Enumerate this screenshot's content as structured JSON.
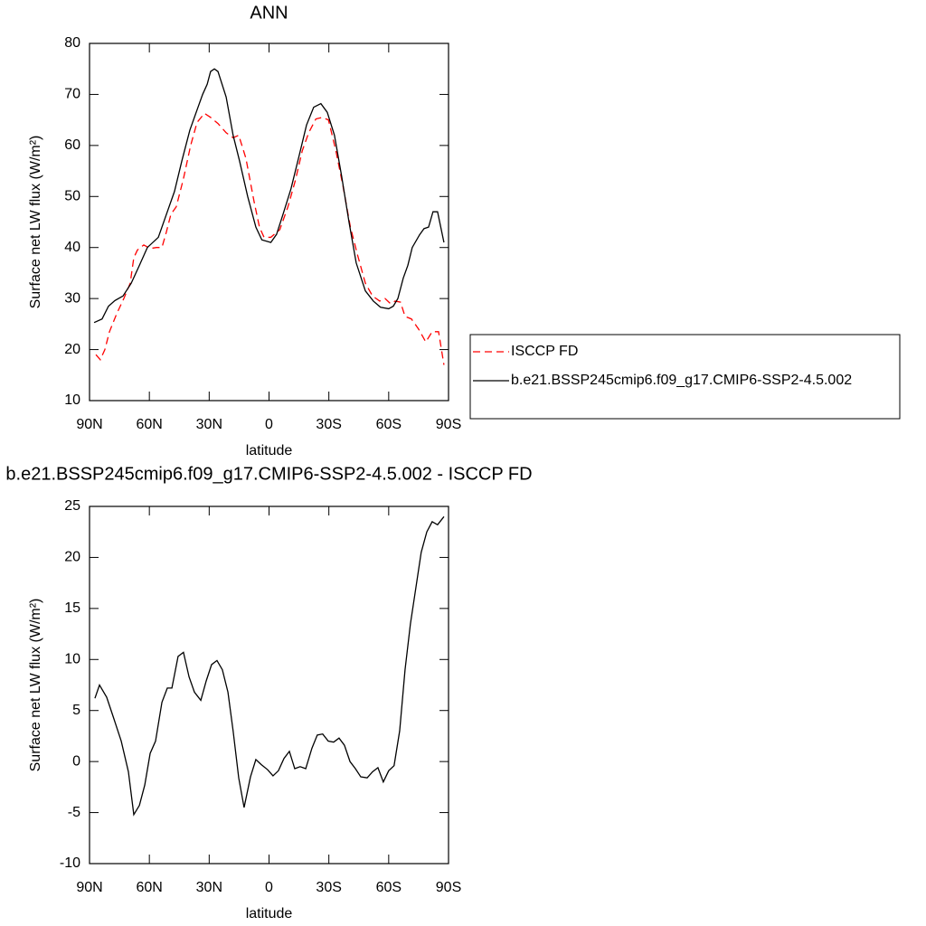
{
  "chart_data": [
    {
      "type": "line",
      "title": "ANN",
      "xlabel": "latitude",
      "ylabel": "Surface net LW flux (W/m²)",
      "xlim": [
        90,
        -90
      ],
      "xticks": [
        {
          "value": 90,
          "label": "90N"
        },
        {
          "value": 60,
          "label": "60N"
        },
        {
          "value": 30,
          "label": "30N"
        },
        0,
        {
          "value": -30,
          "label": "30S"
        },
        {
          "value": -60,
          "label": "60S"
        },
        {
          "value": -90,
          "label": "90S"
        }
      ],
      "ylim": [
        10,
        80
      ],
      "yticks": [
        10,
        20,
        30,
        40,
        50,
        60,
        70,
        80
      ],
      "legend": "right",
      "series": [
        {
          "name": "ISCCP FD",
          "color": "#ff0000",
          "dash": true,
          "x": [
            86.8,
            84.6,
            82.3,
            80,
            76.4,
            72.8,
            69.6,
            67.8,
            66,
            62.8,
            59.6,
            56.5,
            53.7,
            51.5,
            49.2,
            46.5,
            42.9,
            39.3,
            36.1,
            32.4,
            29.3,
            25.6,
            21.5,
            18,
            15.2,
            11.6,
            7.5,
            4.8,
            2.5,
            -0.9,
            -5.4,
            -9.5,
            -13.1,
            -16.7,
            -19.9,
            -23.5,
            -26.7,
            -29.8,
            -33.5,
            -37.1,
            -40.8,
            -44.4,
            -48.3,
            -51.9,
            -55.5,
            -58.2,
            -60.9,
            -63.2,
            -65.9,
            -68.2,
            -71.4,
            -75,
            -78.6,
            -81.8,
            -85,
            -87.7
          ],
          "values": [
            19,
            18,
            20,
            23.5,
            27,
            30,
            33,
            38,
            39.5,
            40.5,
            39.8,
            40,
            40,
            43,
            46.5,
            48,
            53.5,
            60,
            64.5,
            66.3,
            65.5,
            64.3,
            62.5,
            61.5,
            62,
            57.5,
            49,
            44,
            42,
            42,
            43.5,
            48,
            53,
            59,
            62.5,
            65.2,
            65.5,
            65,
            59,
            52,
            44,
            38.5,
            33,
            30.5,
            29.5,
            30,
            29,
            29.5,
            29.3,
            26.5,
            26,
            24,
            21.5,
            23.5,
            23.5,
            17
          ]
        },
        {
          "name": "b.e21.BSSP245cmip6.f09_g17.CMIP6-SSP2-4.5.002",
          "color": "#000000",
          "dash": false,
          "x": [
            87.7,
            83.7,
            80.5,
            77.3,
            73.2,
            69.1,
            65,
            61,
            55.5,
            51,
            47.4,
            43.7,
            39.7,
            35.6,
            33.3,
            31,
            29.3,
            27.4,
            25.6,
            21.5,
            18,
            14.8,
            10.7,
            6.6,
            3.6,
            -0.9,
            -3.8,
            -7,
            -11,
            -15.1,
            -18.8,
            -22.4,
            -26,
            -29.2,
            -32.8,
            -36.4,
            -40.1,
            -43.7,
            -48.3,
            -52.3,
            -55.9,
            -60,
            -62.3,
            -64.6,
            -67.3,
            -69.6,
            -71.8,
            -75.5,
            -77.7,
            -80,
            -82.2,
            -84.5,
            -87.7
          ],
          "values": [
            25.3,
            26,
            28.5,
            29.6,
            30.5,
            33,
            36.5,
            40,
            42,
            47,
            51,
            57,
            63,
            67.5,
            70,
            72,
            74.5,
            75,
            74.5,
            69.5,
            62,
            57,
            50,
            44,
            41.5,
            41,
            42.6,
            46.5,
            51.5,
            58,
            64,
            67.5,
            68.2,
            66.5,
            62,
            54,
            45,
            37,
            31.5,
            29.5,
            28.3,
            28,
            28.5,
            30,
            34,
            36.5,
            40,
            42.5,
            43.7,
            44,
            47,
            47,
            41
          ]
        }
      ]
    },
    {
      "type": "line",
      "title": "b.e21.BSSP245cmip6.f09_g17.CMIP6-SSP2-4.5.002 - ISCCP FD",
      "xlabel": "latitude",
      "ylabel": "Surface net LW flux (W/m²)",
      "xlim": [
        90,
        -90
      ],
      "xticks": [
        {
          "value": 90,
          "label": "90N"
        },
        {
          "value": 60,
          "label": "60N"
        },
        {
          "value": 30,
          "label": "30N"
        },
        0,
        {
          "value": -30,
          "label": "30S"
        },
        {
          "value": -60,
          "label": "60S"
        },
        {
          "value": -90,
          "label": "90S"
        }
      ],
      "ylim": [
        -10,
        25
      ],
      "yticks": [
        -10,
        -5,
        0,
        5,
        10,
        15,
        20,
        25
      ],
      "series": [
        {
          "color": "#000000",
          "dash": false,
          "x": [
            87.3,
            85,
            81.4,
            77.8,
            74.1,
            70.5,
            67.8,
            65,
            62.3,
            59.6,
            56.9,
            53.7,
            51,
            48.7,
            45.6,
            42.9,
            40.1,
            37.4,
            34.2,
            31.5,
            28.8,
            26.1,
            23.4,
            20.6,
            18,
            15.2,
            12.5,
            9.3,
            6.6,
            3.9,
            0.7,
            -2,
            -4.7,
            -7.5,
            -10.2,
            -12.9,
            -15.6,
            -18.4,
            -21.5,
            -24.2,
            -26.9,
            -29.7,
            -32.4,
            -35.1,
            -37.8,
            -40.6,
            -43.3,
            -46,
            -49.2,
            -51.9,
            -54.6,
            -57.3,
            -60,
            -62.7,
            -65.5,
            -68.2,
            -70.9,
            -73.6,
            -76.3,
            -79.1,
            -81.8,
            -84.5,
            -87.7
          ],
          "values": [
            6.2,
            7.5,
            6.3,
            4.2,
            2,
            -1,
            -5.2,
            -4.3,
            -2.3,
            0.8,
            2,
            5.8,
            7.2,
            7.2,
            10.3,
            10.7,
            8.3,
            6.8,
            6,
            7.9,
            9.5,
            9.9,
            9,
            6.8,
            3,
            -1.6,
            -4.5,
            -1.5,
            0.2,
            -0.3,
            -0.8,
            -1.4,
            -0.9,
            0.3,
            1,
            -0.7,
            -0.5,
            -0.7,
            1.3,
            2.6,
            2.7,
            2,
            1.9,
            2.3,
            1.6,
            0,
            -0.7,
            -1.5,
            -1.6,
            -1,
            -0.6,
            -2,
            -0.9,
            -0.4,
            3,
            9,
            13.5,
            17,
            20.5,
            22.5,
            23.5,
            23.2,
            24
          ]
        }
      ]
    }
  ]
}
